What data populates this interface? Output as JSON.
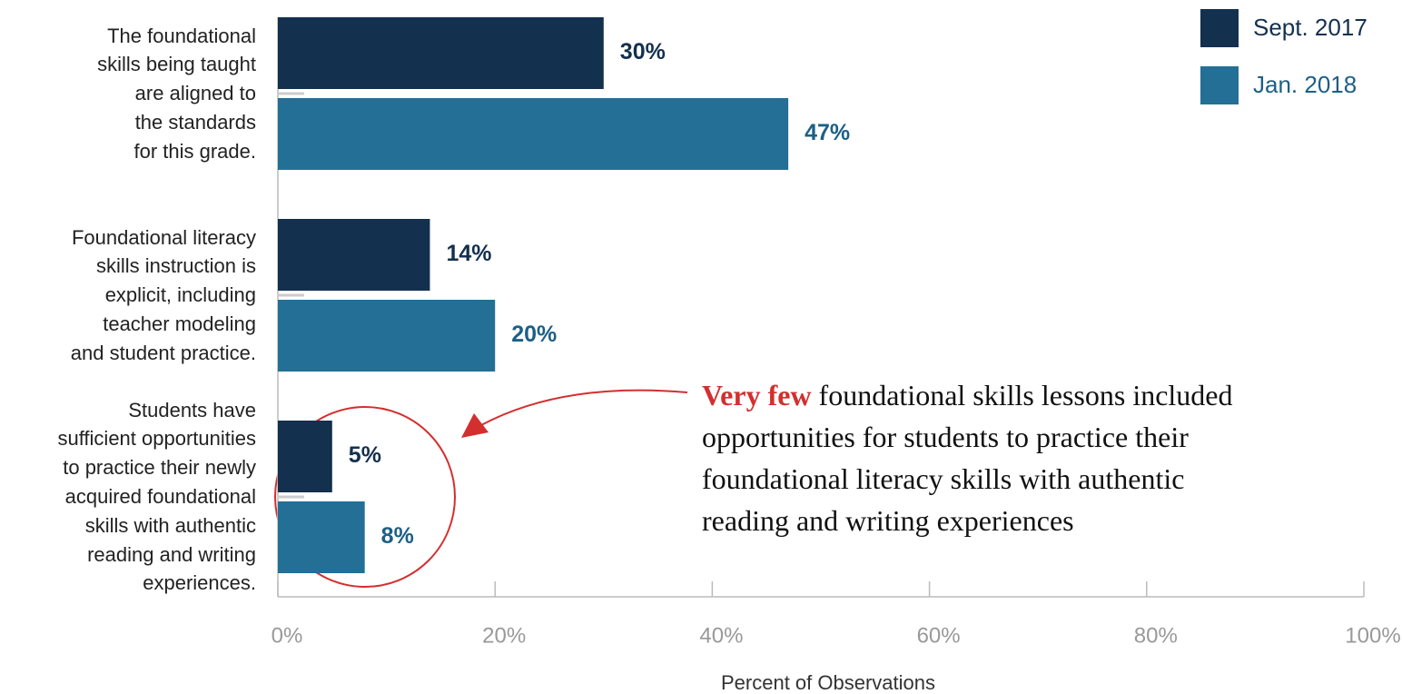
{
  "chart_data": {
    "type": "bar",
    "orientation": "horizontal",
    "categories": [
      "The foundational\nskills being taught\nare aligned to\nthe standards\nfor this grade.",
      "Foundational literacy\nskills instruction is\nexplicit, including\nteacher modeling\nand student practice.",
      "Students have\nsufficient opportunities\nto practice their newly\nacquired foundational\nskills with authentic\nreading and writing\nexperiences."
    ],
    "series": [
      {
        "name": "Sept. 2017",
        "color": "#13304f",
        "label_color": "#13304f",
        "values": [
          30,
          14,
          5
        ],
        "value_labels": [
          "30%",
          "14%",
          "5%"
        ]
      },
      {
        "name": "Jan. 2018",
        "color": "#236f96",
        "label_color": "#1d5f86",
        "values": [
          47,
          20,
          8
        ],
        "value_labels": [
          "47%",
          "20%",
          "8%"
        ]
      }
    ],
    "xlim": [
      0,
      100
    ],
    "xticks": [
      {
        "value": 0,
        "label": "0%"
      },
      {
        "value": 20,
        "label": "20%"
      },
      {
        "value": 40,
        "label": "40%"
      },
      {
        "value": 60,
        "label": "60%"
      },
      {
        "value": 80,
        "label": "80%"
      },
      {
        "value": 100,
        "label": "100%"
      }
    ],
    "xlabel": "Percent of Observations",
    "legend": "top-right",
    "annotation": {
      "highlight": "Very few",
      "text": "foundational skills lessons included\nopportunities for students to practice their\nfoundational literacy skills with authentic\nreading and writing experiences"
    }
  }
}
